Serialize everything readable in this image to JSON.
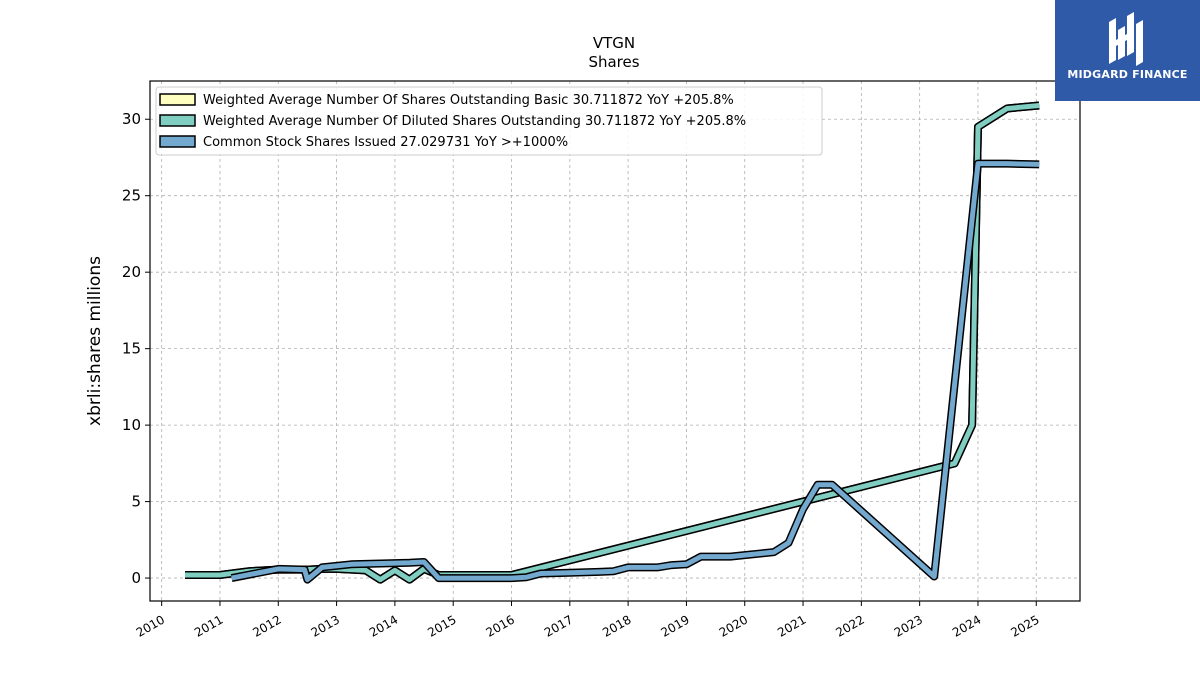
{
  "chart_data": {
    "type": "line",
    "title": "VTGN",
    "subtitle": "Shares",
    "ylabel": "xbrli:shares millions",
    "xlabel": "",
    "xlim": [
      2009.8,
      2025.75
    ],
    "ylim": [
      -1.5,
      32.5
    ],
    "x_ticks": [
      "2010",
      "2011",
      "2012",
      "2013",
      "2014",
      "2015",
      "2016",
      "2017",
      "2018",
      "2019",
      "2020",
      "2021",
      "2022",
      "2023",
      "2024",
      "2025"
    ],
    "y_ticks": [
      "0",
      "5",
      "10",
      "15",
      "20",
      "25",
      "30"
    ],
    "grid": true,
    "legend_position": "top-left",
    "series": [
      {
        "name": "Weighted Average Number Of Shares Outstanding Basic  30.711872 YoY +205.8%",
        "color": "#ffffbf",
        "points": [
          [
            2010.4,
            0.2
          ],
          [
            2011.0,
            0.2
          ],
          [
            2011.5,
            0.45
          ],
          [
            2012.0,
            0.55
          ],
          [
            2012.5,
            0.55
          ],
          [
            2012.75,
            0.6
          ],
          [
            2013.0,
            0.6
          ],
          [
            2013.5,
            0.5
          ],
          [
            2013.75,
            -0.1
          ],
          [
            2014.0,
            0.5
          ],
          [
            2014.25,
            -0.1
          ],
          [
            2014.5,
            0.6
          ],
          [
            2014.75,
            0.2
          ],
          [
            2015.0,
            0.2
          ],
          [
            2015.5,
            0.2
          ],
          [
            2016.0,
            0.2
          ],
          [
            2023.6,
            7.5
          ],
          [
            2023.9,
            10.0
          ],
          [
            2024.0,
            29.5
          ],
          [
            2024.5,
            30.7
          ],
          [
            2025.05,
            30.9
          ]
        ]
      },
      {
        "name": "Weighted Average Number Of Diluted Shares Outstanding  30.711872 YoY +205.8%",
        "color": "#80cdc1",
        "points": [
          [
            2010.4,
            0.2
          ],
          [
            2011.0,
            0.2
          ],
          [
            2011.5,
            0.45
          ],
          [
            2012.0,
            0.55
          ],
          [
            2012.5,
            0.55
          ],
          [
            2012.75,
            0.6
          ],
          [
            2013.0,
            0.6
          ],
          [
            2013.5,
            0.5
          ],
          [
            2013.75,
            -0.1
          ],
          [
            2014.0,
            0.5
          ],
          [
            2014.25,
            -0.1
          ],
          [
            2014.5,
            0.6
          ],
          [
            2014.75,
            0.2
          ],
          [
            2015.0,
            0.2
          ],
          [
            2015.5,
            0.2
          ],
          [
            2016.0,
            0.2
          ],
          [
            2023.6,
            7.5
          ],
          [
            2023.9,
            10.0
          ],
          [
            2024.0,
            29.5
          ],
          [
            2024.5,
            30.7
          ],
          [
            2025.05,
            30.9
          ]
        ]
      },
      {
        "name": "Common Stock Shares Issued  27.029731 YoY >+1000%",
        "color": "#74a9cf",
        "points": [
          [
            2011.2,
            0.0
          ],
          [
            2011.6,
            0.3
          ],
          [
            2012.0,
            0.6
          ],
          [
            2012.45,
            0.55
          ],
          [
            2012.5,
            -0.1
          ],
          [
            2012.75,
            0.7
          ],
          [
            2013.25,
            0.9
          ],
          [
            2013.75,
            0.95
          ],
          [
            2014.25,
            1.0
          ],
          [
            2014.5,
            1.05
          ],
          [
            2014.75,
            0.0
          ],
          [
            2015.5,
            0.0
          ],
          [
            2016.0,
            0.0
          ],
          [
            2016.25,
            0.05
          ],
          [
            2016.5,
            0.3
          ],
          [
            2017.0,
            0.35
          ],
          [
            2017.5,
            0.4
          ],
          [
            2017.75,
            0.45
          ],
          [
            2018.0,
            0.7
          ],
          [
            2018.5,
            0.7
          ],
          [
            2018.75,
            0.85
          ],
          [
            2019.0,
            0.9
          ],
          [
            2019.25,
            1.4
          ],
          [
            2019.75,
            1.4
          ],
          [
            2020.0,
            1.5
          ],
          [
            2020.5,
            1.7
          ],
          [
            2020.75,
            2.3
          ],
          [
            2021.0,
            4.5
          ],
          [
            2021.25,
            6.1
          ],
          [
            2021.5,
            6.1
          ],
          [
            2023.25,
            0.1
          ],
          [
            2024.0,
            27.1
          ],
          [
            2024.5,
            27.1
          ],
          [
            2025.05,
            27.05
          ]
        ]
      }
    ]
  },
  "logo": {
    "text": "MIDGARD FINANCE",
    "background": "#2f5aa8"
  }
}
